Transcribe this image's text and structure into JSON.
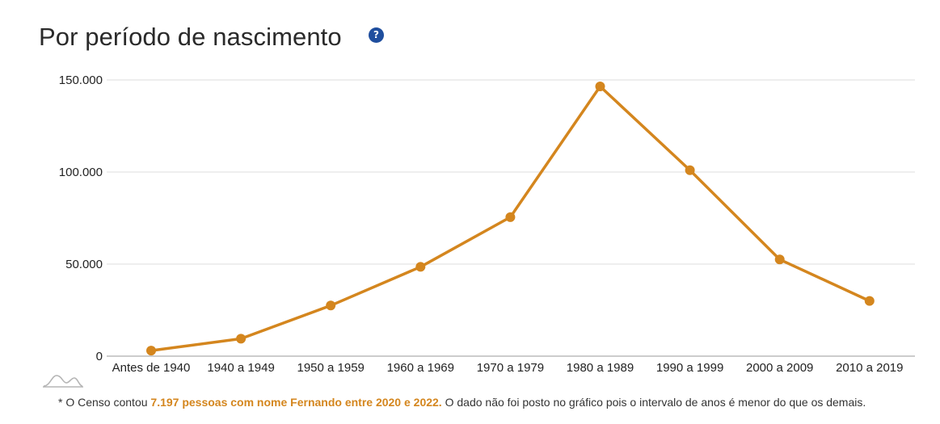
{
  "header": {
    "title": "Por período de nascimento",
    "help_icon": "help-icon",
    "help_glyph": "?"
  },
  "chart_data": {
    "type": "line",
    "categories": [
      "Antes de 1940",
      "1940 a 1949",
      "1950 a 1959",
      "1960 a 1969",
      "1970 a 1979",
      "1980 a 1989",
      "1990 a 1999",
      "2000 a 2009",
      "2010 a 2019"
    ],
    "values": [
      3000,
      9500,
      27500,
      48500,
      75500,
      146500,
      101000,
      52500,
      30000
    ],
    "yticks": [
      0,
      50000,
      100000,
      150000
    ],
    "ytick_labels": [
      "0",
      "50.000",
      "100.000",
      "150.000"
    ],
    "ylim": [
      0,
      150000
    ],
    "color": "#d4861e",
    "grid": true,
    "title": "",
    "xlabel": "",
    "ylabel": ""
  },
  "footnote": {
    "prefix": "* O Censo contou ",
    "highlight": "7.197 pessoas com nome Fernando entre 2020 e 2022.",
    "suffix": " O dado não foi posto no gráfico pois o intervalo de anos é menor do que os demais."
  },
  "mini_icon": "distribution-curve-icon"
}
